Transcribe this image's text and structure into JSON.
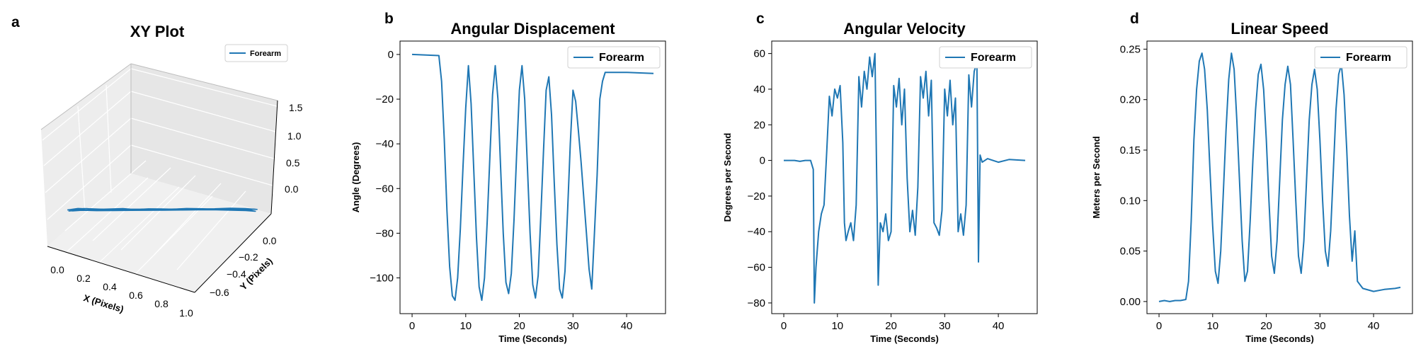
{
  "figure": {
    "panel_letters": [
      "a",
      "b",
      "c",
      "d"
    ],
    "line_color": "#1f77b4"
  },
  "chart_data": [
    {
      "type": "scatter",
      "panel": "a",
      "title": "XY Plot",
      "xlabel": "X (Pixels)",
      "ylabel": "Y (Pixels)",
      "zlabel": "",
      "x_ticks": [
        "0.0",
        "0.2",
        "0.4",
        "0.6",
        "0.8",
        "1.0"
      ],
      "y_ticks": [
        "0.0",
        "−0.2",
        "−0.4",
        "−0.6"
      ],
      "z_ticks": [
        "0.0",
        "0.5",
        "1.0",
        "1.5"
      ],
      "xlim": [
        -0.1,
        1.0
      ],
      "ylim": [
        -0.7,
        0.1
      ],
      "zlim": [
        -0.2,
        1.5
      ],
      "legend": [
        "Forearm"
      ],
      "legend_position": "top-right",
      "series": [
        {
          "name": "Forearm",
          "points": [
            [
              0.0,
              0.02,
              0.3
            ],
            [
              0.04,
              -0.03,
              0.28
            ],
            [
              0.09,
              -0.07,
              0.25
            ],
            [
              0.14,
              -0.11,
              0.22
            ],
            [
              0.19,
              -0.16,
              0.19
            ],
            [
              0.24,
              -0.2,
              0.17
            ],
            [
              0.3,
              -0.24,
              0.14
            ],
            [
              0.36,
              -0.29,
              0.12
            ],
            [
              0.42,
              -0.33,
              0.1
            ],
            [
              0.48,
              -0.37,
              0.08
            ],
            [
              0.54,
              -0.42,
              0.06
            ],
            [
              0.6,
              -0.46,
              0.04
            ],
            [
              0.66,
              -0.5,
              0.02
            ],
            [
              0.72,
              -0.54,
              0.0
            ],
            [
              0.78,
              -0.58,
              -0.02
            ],
            [
              0.84,
              -0.62,
              -0.05
            ],
            [
              0.88,
              -0.64,
              -0.07
            ],
            [
              0.84,
              -0.6,
              -0.03
            ],
            [
              0.77,
              -0.55,
              0.0
            ],
            [
              0.7,
              -0.5,
              0.03
            ],
            [
              0.62,
              -0.44,
              0.06
            ],
            [
              0.54,
              -0.38,
              0.09
            ],
            [
              0.46,
              -0.32,
              0.12
            ],
            [
              0.38,
              -0.26,
              0.15
            ],
            [
              0.3,
              -0.2,
              0.18
            ],
            [
              0.22,
              -0.14,
              0.21
            ],
            [
              0.14,
              -0.08,
              0.24
            ],
            [
              0.06,
              -0.02,
              0.28
            ],
            [
              0.02,
              0.03,
              0.31
            ],
            [
              0.07,
              -0.05,
              0.27
            ],
            [
              0.13,
              -0.1,
              0.23
            ],
            [
              0.2,
              -0.15,
              0.2
            ],
            [
              0.28,
              -0.21,
              0.16
            ],
            [
              0.36,
              -0.27,
              0.13
            ],
            [
              0.45,
              -0.34,
              0.1
            ],
            [
              0.53,
              -0.4,
              0.07
            ],
            [
              0.61,
              -0.46,
              0.04
            ],
            [
              0.69,
              -0.51,
              0.01
            ],
            [
              0.76,
              -0.56,
              -0.02
            ],
            [
              0.83,
              -0.61,
              -0.04
            ],
            [
              0.87,
              -0.65,
              -0.06
            ],
            [
              0.81,
              -0.59,
              -0.02
            ],
            [
              0.73,
              -0.53,
              0.02
            ],
            [
              0.65,
              -0.47,
              0.05
            ],
            [
              0.57,
              -0.41,
              0.08
            ],
            [
              0.49,
              -0.35,
              0.11
            ],
            [
              0.41,
              -0.29,
              0.14
            ],
            [
              0.33,
              -0.23,
              0.17
            ],
            [
              0.25,
              -0.17,
              0.2
            ],
            [
              0.17,
              -0.11,
              0.23
            ],
            [
              0.09,
              -0.05,
              0.26
            ],
            [
              0.03,
              0.01,
              0.29
            ],
            [
              0.08,
              -0.06,
              0.26
            ],
            [
              0.16,
              -0.12,
              0.22
            ],
            [
              0.24,
              -0.18,
              0.19
            ],
            [
              0.33,
              -0.25,
              0.15
            ],
            [
              0.42,
              -0.31,
              0.12
            ],
            [
              0.51,
              -0.38,
              0.09
            ],
            [
              0.6,
              -0.45,
              0.05
            ],
            [
              0.68,
              -0.51,
              0.02
            ],
            [
              0.75,
              -0.57,
              -0.01
            ],
            [
              0.82,
              -0.62,
              -0.04
            ],
            [
              0.88,
              -0.66,
              -0.07
            ]
          ]
        }
      ]
    },
    {
      "type": "line",
      "panel": "b",
      "title": "Angular Displacement",
      "xlabel": "Time (Seconds)",
      "ylabel": "Angle (Degrees)",
      "xlim": [
        -2.25,
        47.25
      ],
      "ylim": [
        -116,
        6
      ],
      "x_ticks": [
        0,
        10,
        20,
        30,
        40
      ],
      "y_ticks": [
        0,
        -20,
        -40,
        -60,
        -80,
        -100
      ],
      "legend_position": "top-right",
      "series": [
        {
          "name": "Forearm",
          "x": [
            0,
            5,
            5.5,
            6,
            6.5,
            7,
            7.5,
            8,
            8.5,
            9,
            9.5,
            10,
            10.5,
            11,
            11.5,
            12,
            12.5,
            13,
            13.5,
            14,
            14.5,
            15,
            15.5,
            16,
            16.5,
            17,
            17.5,
            18,
            18.5,
            19,
            19.5,
            20,
            20.5,
            21,
            21.5,
            22,
            22.5,
            23,
            23.5,
            24,
            24.5,
            25,
            25.5,
            26,
            26.5,
            27,
            27.5,
            28,
            28.5,
            29,
            29.5,
            30,
            30.5,
            31,
            31.5,
            32,
            32.5,
            33,
            33.5,
            34,
            34.5,
            35,
            35.5,
            36,
            36.5,
            37,
            40,
            45
          ],
          "y": [
            0,
            -0.5,
            -12,
            -38,
            -70,
            -95,
            -108,
            -110,
            -100,
            -78,
            -50,
            -24,
            -5,
            -22,
            -52,
            -82,
            -104,
            -110,
            -100,
            -75,
            -46,
            -18,
            -5,
            -20,
            -50,
            -80,
            -102,
            -107,
            -98,
            -74,
            -44,
            -16,
            -5,
            -20,
            -50,
            -80,
            -103,
            -109,
            -99,
            -72,
            -43,
            -16,
            -10,
            -27,
            -57,
            -85,
            -105,
            -109,
            -97,
            -70,
            -40,
            -16,
            -21,
            -34,
            -48,
            -64,
            -80,
            -96,
            -105,
            -80,
            -54,
            -20,
            -12,
            -8,
            -8,
            -8,
            -8,
            -8.5
          ]
        }
      ]
    },
    {
      "type": "line",
      "panel": "c",
      "title": "Angular Velocity",
      "xlabel": "Time (Seconds)",
      "ylabel": "Degrees per Second",
      "xlim": [
        -2.25,
        47.25
      ],
      "ylim": [
        -86,
        67
      ],
      "x_ticks": [
        0,
        10,
        20,
        30,
        40
      ],
      "y_ticks": [
        60,
        40,
        20,
        0,
        -20,
        -40,
        -60,
        -80
      ],
      "legend_position": "top-right",
      "series": [
        {
          "name": "Forearm",
          "x": [
            0,
            1,
            2,
            3,
            4,
            5,
            5.5,
            5.7,
            6,
            6.5,
            7,
            7.5,
            8,
            8.5,
            9,
            9.5,
            10,
            10.5,
            11,
            11.3,
            11.6,
            12,
            12.5,
            13,
            13.5,
            14,
            14.5,
            15,
            15.5,
            16,
            16.5,
            17,
            17.3,
            17.6,
            18,
            18.5,
            19,
            19.5,
            20,
            20.5,
            21,
            21.5,
            22,
            22.5,
            23,
            23.5,
            24,
            24.5,
            25,
            25.5,
            26,
            26.5,
            27,
            27.5,
            28,
            28.5,
            29,
            29.5,
            30,
            30.5,
            31,
            31.5,
            32,
            32.5,
            33,
            33.5,
            34,
            34.5,
            35,
            35.5,
            36,
            36.3,
            36.6,
            37,
            38,
            40,
            42,
            45
          ],
          "y": [
            0,
            0,
            0,
            -0.5,
            0,
            0,
            -5,
            -80,
            -60,
            -40,
            -30,
            -25,
            5,
            36,
            25,
            40,
            35,
            42,
            10,
            -35,
            -45,
            -40,
            -35,
            -45,
            -25,
            47,
            30,
            50,
            40,
            58,
            47,
            60,
            -5,
            -70,
            -35,
            -40,
            -30,
            -45,
            -40,
            42,
            30,
            46,
            20,
            40,
            -10,
            -40,
            -28,
            -42,
            -15,
            47,
            35,
            50,
            25,
            45,
            -35,
            -38,
            -42,
            -28,
            40,
            25,
            45,
            20,
            35,
            -40,
            -30,
            -42,
            -25,
            48,
            30,
            50,
            55,
            -57,
            3,
            -1,
            1,
            -1,
            0.5,
            0
          ]
        }
      ]
    },
    {
      "type": "line",
      "panel": "d",
      "title": "Linear Speed",
      "xlabel": "Time (Seconds)",
      "ylabel": "Meters per Second",
      "xlim": [
        -2.25,
        47.25
      ],
      "ylim": [
        -0.012,
        0.258
      ],
      "x_ticks": [
        0,
        10,
        20,
        30,
        40
      ],
      "y_ticks": [
        0.0,
        0.05,
        0.1,
        0.15,
        0.2,
        0.25
      ],
      "legend_position": "top-right",
      "series": [
        {
          "name": "Forearm",
          "x": [
            0,
            1,
            2,
            3,
            4,
            5,
            5.5,
            6,
            6.5,
            7,
            7.5,
            8,
            8.5,
            9,
            9.5,
            10,
            10.5,
            11,
            11.5,
            12,
            12.5,
            13,
            13.5,
            14,
            14.5,
            15,
            15.5,
            16,
            16.5,
            17,
            17.5,
            18,
            18.5,
            19,
            19.5,
            20,
            20.5,
            21,
            21.5,
            22,
            22.5,
            23,
            23.5,
            24,
            24.5,
            25,
            25.5,
            26,
            26.5,
            27,
            27.5,
            28,
            28.5,
            29,
            29.5,
            30,
            30.5,
            31,
            31.5,
            32,
            32.5,
            33,
            33.5,
            34,
            34.5,
            35,
            35.5,
            36,
            36.5,
            37,
            38,
            40,
            42,
            44,
            45
          ],
          "y": [
            0.0,
            0.001,
            0.0,
            0.001,
            0.001,
            0.002,
            0.02,
            0.08,
            0.16,
            0.21,
            0.238,
            0.246,
            0.23,
            0.19,
            0.13,
            0.075,
            0.03,
            0.018,
            0.05,
            0.11,
            0.17,
            0.22,
            0.246,
            0.23,
            0.18,
            0.12,
            0.06,
            0.02,
            0.03,
            0.08,
            0.14,
            0.19,
            0.225,
            0.235,
            0.21,
            0.16,
            0.1,
            0.045,
            0.028,
            0.06,
            0.12,
            0.18,
            0.215,
            0.233,
            0.215,
            0.16,
            0.1,
            0.045,
            0.028,
            0.06,
            0.12,
            0.18,
            0.215,
            0.23,
            0.21,
            0.16,
            0.1,
            0.05,
            0.035,
            0.07,
            0.13,
            0.19,
            0.225,
            0.235,
            0.205,
            0.15,
            0.085,
            0.04,
            0.07,
            0.02,
            0.013,
            0.01,
            0.012,
            0.013,
            0.014
          ]
        }
      ]
    }
  ]
}
